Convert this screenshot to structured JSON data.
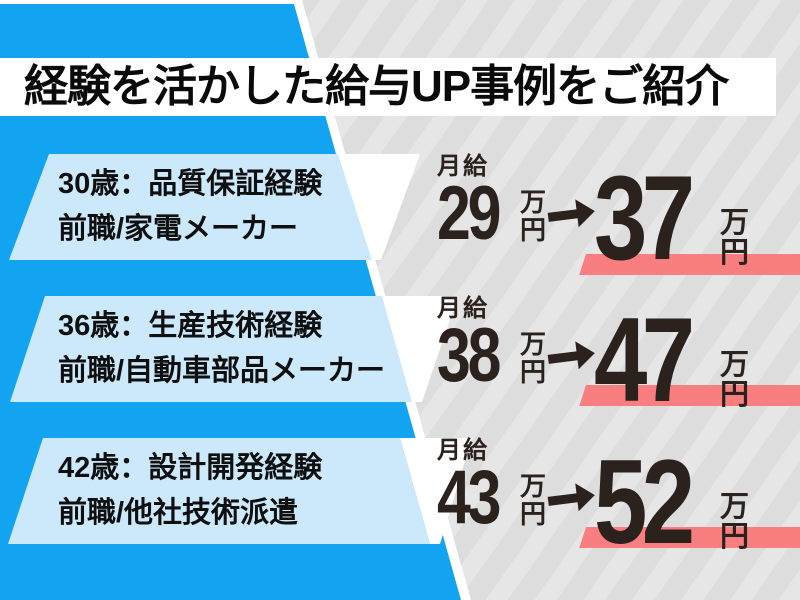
{
  "title": {
    "text": "経験を活かした給与UP事例をご紹介"
  },
  "rows": [
    {
      "profile_line1": "30歳：品質保証経験",
      "profile_line2": "前職/家電メーカー",
      "salary_label": "月給",
      "salary_before": "29",
      "salary_after": "37",
      "unit_man": "万",
      "unit_en": "円"
    },
    {
      "profile_line1": "36歳：生産技術経験",
      "profile_line2": "前職/自動車部品メーカー",
      "salary_label": "月給",
      "salary_before": "38",
      "salary_after": "47",
      "unit_man": "万",
      "unit_en": "円"
    },
    {
      "profile_line1": "42歳：設計開発経験",
      "profile_line2": "前職/他社技術派遣",
      "salary_label": "月給",
      "salary_before": "43",
      "salary_after": "52",
      "unit_man": "万",
      "unit_en": "円"
    }
  ],
  "colors": {
    "accent_blue": "#12A4F0",
    "card_blue": "#CBE9FB",
    "bg_gray": "#DDDDDD",
    "stripe_gray": "#E6E6E6",
    "highlight_pink": "#F97E80",
    "text_dark": "#2B211D",
    "banner_white": "#FFFFFF"
  }
}
